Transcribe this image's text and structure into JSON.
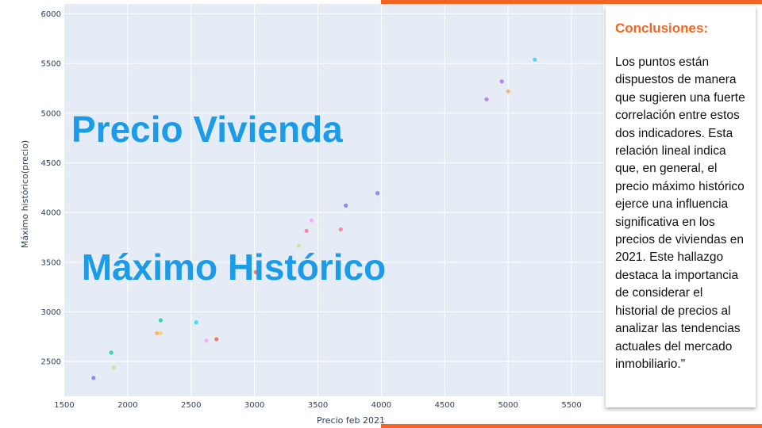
{
  "slide": {
    "title_line1": "Precio Vivienda",
    "title_line2": " Máximo Histórico",
    "card_heading": "Conclusiones:",
    "card_text": "Los puntos están dispuestos de manera que sugieren una fuerte correlación entre estos dos indicadores. Esta relación lineal indica que, en general, el precio máximo histórico ejerce una influencia significativa en los precios de viviendas en 2021. Este hallazgo destaca la importancia de considerar el historial de precios al analizar las tendencias actuales del mercado inmobiliario.\"",
    "accent_color": "#f26522",
    "title_color": "#1b9be8"
  },
  "chart_data": {
    "type": "scatter",
    "xlabel": "Precio feb 2021",
    "ylabel": "Máximo histórico(precio)",
    "xlim": [
      1500,
      5750
    ],
    "ylim": [
      2150,
      6100
    ],
    "x_ticks": [
      1500,
      2000,
      2500,
      3000,
      3500,
      4000,
      4500,
      5000,
      5500
    ],
    "y_ticks": [
      2500,
      3000,
      3500,
      4000,
      4500,
      5000,
      5500,
      6000
    ],
    "grid": true,
    "background": "#e5ecf6",
    "points": [
      {
        "x": 1730,
        "y": 2335,
        "color": "#636efa"
      },
      {
        "x": 1870,
        "y": 2590,
        "color": "#00cc96"
      },
      {
        "x": 1890,
        "y": 2440,
        "color": "#b6e880"
      },
      {
        "x": 2230,
        "y": 2785,
        "color": "#ffa15a"
      },
      {
        "x": 2260,
        "y": 2785,
        "color": "#fecb52"
      },
      {
        "x": 2260,
        "y": 2915,
        "color": "#00cc96"
      },
      {
        "x": 2540,
        "y": 2895,
        "color": "#19d3f3"
      },
      {
        "x": 2620,
        "y": 2710,
        "color": "#ff97ff"
      },
      {
        "x": 2700,
        "y": 2725,
        "color": "#ef553b"
      },
      {
        "x": 3010,
        "y": 3400,
        "color": "#ef553b"
      },
      {
        "x": 3350,
        "y": 3665,
        "color": "#b6e880"
      },
      {
        "x": 3410,
        "y": 3815,
        "color": "#ff6692"
      },
      {
        "x": 3450,
        "y": 3920,
        "color": "#ff97ff"
      },
      {
        "x": 3680,
        "y": 3830,
        "color": "#ff6692"
      },
      {
        "x": 3720,
        "y": 4070,
        "color": "#636efa"
      },
      {
        "x": 3970,
        "y": 4195,
        "color": "#636efa"
      },
      {
        "x": 4830,
        "y": 5140,
        "color": "#ab63fa"
      },
      {
        "x": 4950,
        "y": 5320,
        "color": "#ab63fa"
      },
      {
        "x": 5000,
        "y": 5220,
        "color": "#ffa15a"
      },
      {
        "x": 5210,
        "y": 5540,
        "color": "#19d3f3"
      }
    ]
  }
}
